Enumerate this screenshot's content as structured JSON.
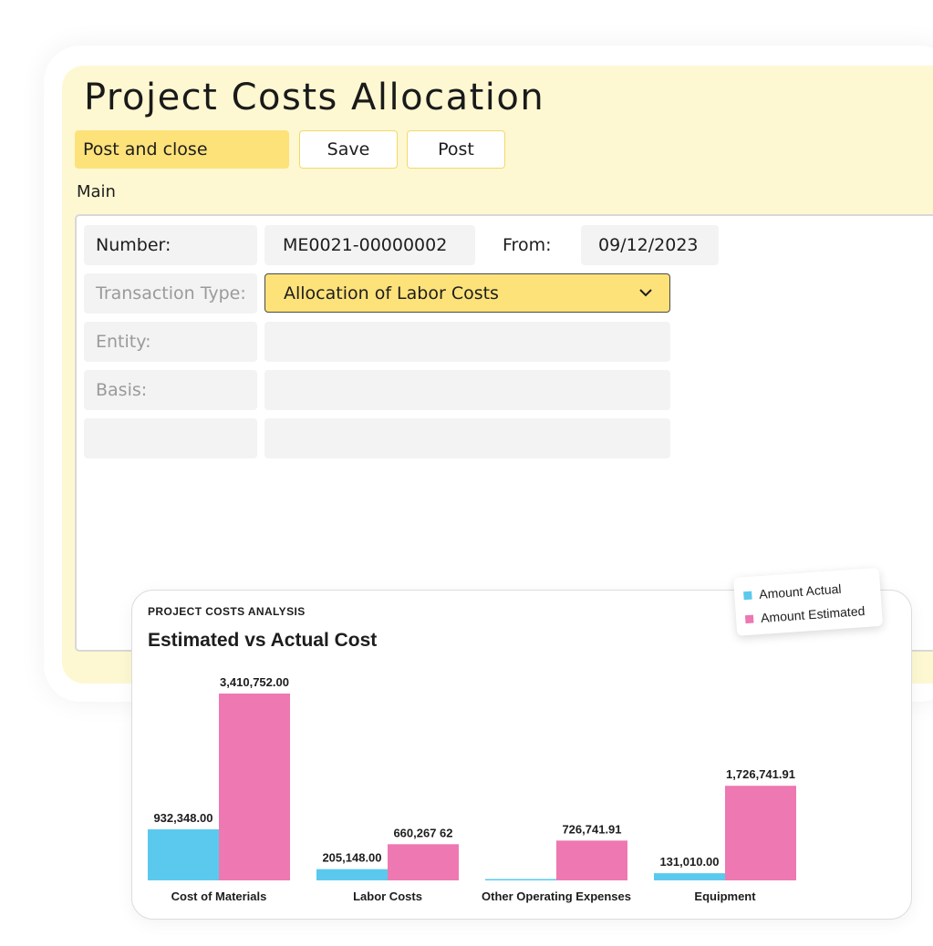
{
  "header": {
    "title": "Project Costs Allocation"
  },
  "toolbar": {
    "post_close_label": "Post and close",
    "save_label": "Save",
    "post_label": "Post"
  },
  "form": {
    "section": "Main",
    "number_label": "Number:",
    "number_value": "ME0021-00000002",
    "from_label": "From:",
    "from_value": "09/12/2023",
    "transaction_type_label": "Transaction Type:",
    "transaction_type_value": "Allocation of Labor Costs",
    "entity_label": "Entity:",
    "basis_label": "Basis:"
  },
  "colors": {
    "accent": "#fde27a",
    "panel": "#fdf8d2",
    "actual": "#5bc9ee",
    "estimated": "#ee78b1"
  },
  "chart_card": {
    "kicker": "PROJECT COSTS ANALYSIS"
  },
  "chart_data": {
    "type": "bar",
    "title": "Estimated vs Actual Cost",
    "categories": [
      "Cost of Materials",
      "Labor Costs",
      "Other Operating Expenses",
      "Equipment"
    ],
    "series": [
      {
        "name": "Amount Actual",
        "values": [
          932348.0,
          205148.0,
          0,
          131010.0
        ],
        "labels": [
          "932,348.00",
          "205,148.00",
          "",
          "131,010.00"
        ]
      },
      {
        "name": "Amount Estimated",
        "values": [
          3410752.0,
          660267.62,
          726741.91,
          1726741.91
        ],
        "labels": [
          "3,410,752.00",
          "660,267 62",
          "726,741.91",
          "1,726,741.91"
        ]
      }
    ],
    "legend": "top-right",
    "grid": false
  }
}
